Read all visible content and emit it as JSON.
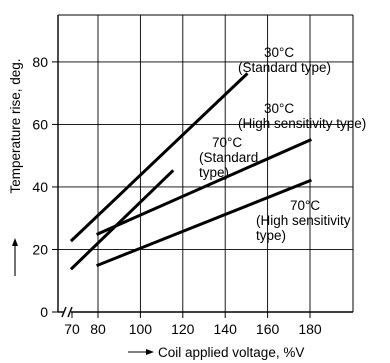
{
  "chart_data": {
    "type": "line",
    "xlabel": "Coil applied voltage, %V",
    "ylabel": "Temperature rise, deg.",
    "xlim": [
      70,
      190
    ],
    "ylim": [
      0,
      95
    ],
    "x_ticks": [
      70,
      80,
      100,
      120,
      140,
      160,
      180
    ],
    "y_ticks": [
      0,
      20,
      40,
      60,
      80
    ],
    "x_axis_break": true,
    "grid": true,
    "line_color": "#000000",
    "series": [
      {
        "x": [
          70,
          150
        ],
        "y": [
          23,
          76
        ]
      },
      {
        "x": [
          70,
          115
        ],
        "y": [
          14,
          45
        ]
      },
      {
        "x": [
          80,
          180
        ],
        "y": [
          25,
          55
        ]
      },
      {
        "x": [
          80,
          180
        ],
        "y": [
          15,
          42
        ]
      }
    ],
    "annotations": [
      {
        "lines": [
          "30°C",
          "(Standard type)"
        ],
        "series_index": 0
      },
      {
        "lines": [
          "30°C",
          "(High sensitivity type)"
        ],
        "series_index": 1
      },
      {
        "lines": [
          "70°C",
          "(Standard",
          "type)"
        ],
        "series_index": 2
      },
      {
        "lines": [
          "70°C",
          "(High sensitivity",
          "type)"
        ],
        "series_index": 3
      }
    ]
  }
}
